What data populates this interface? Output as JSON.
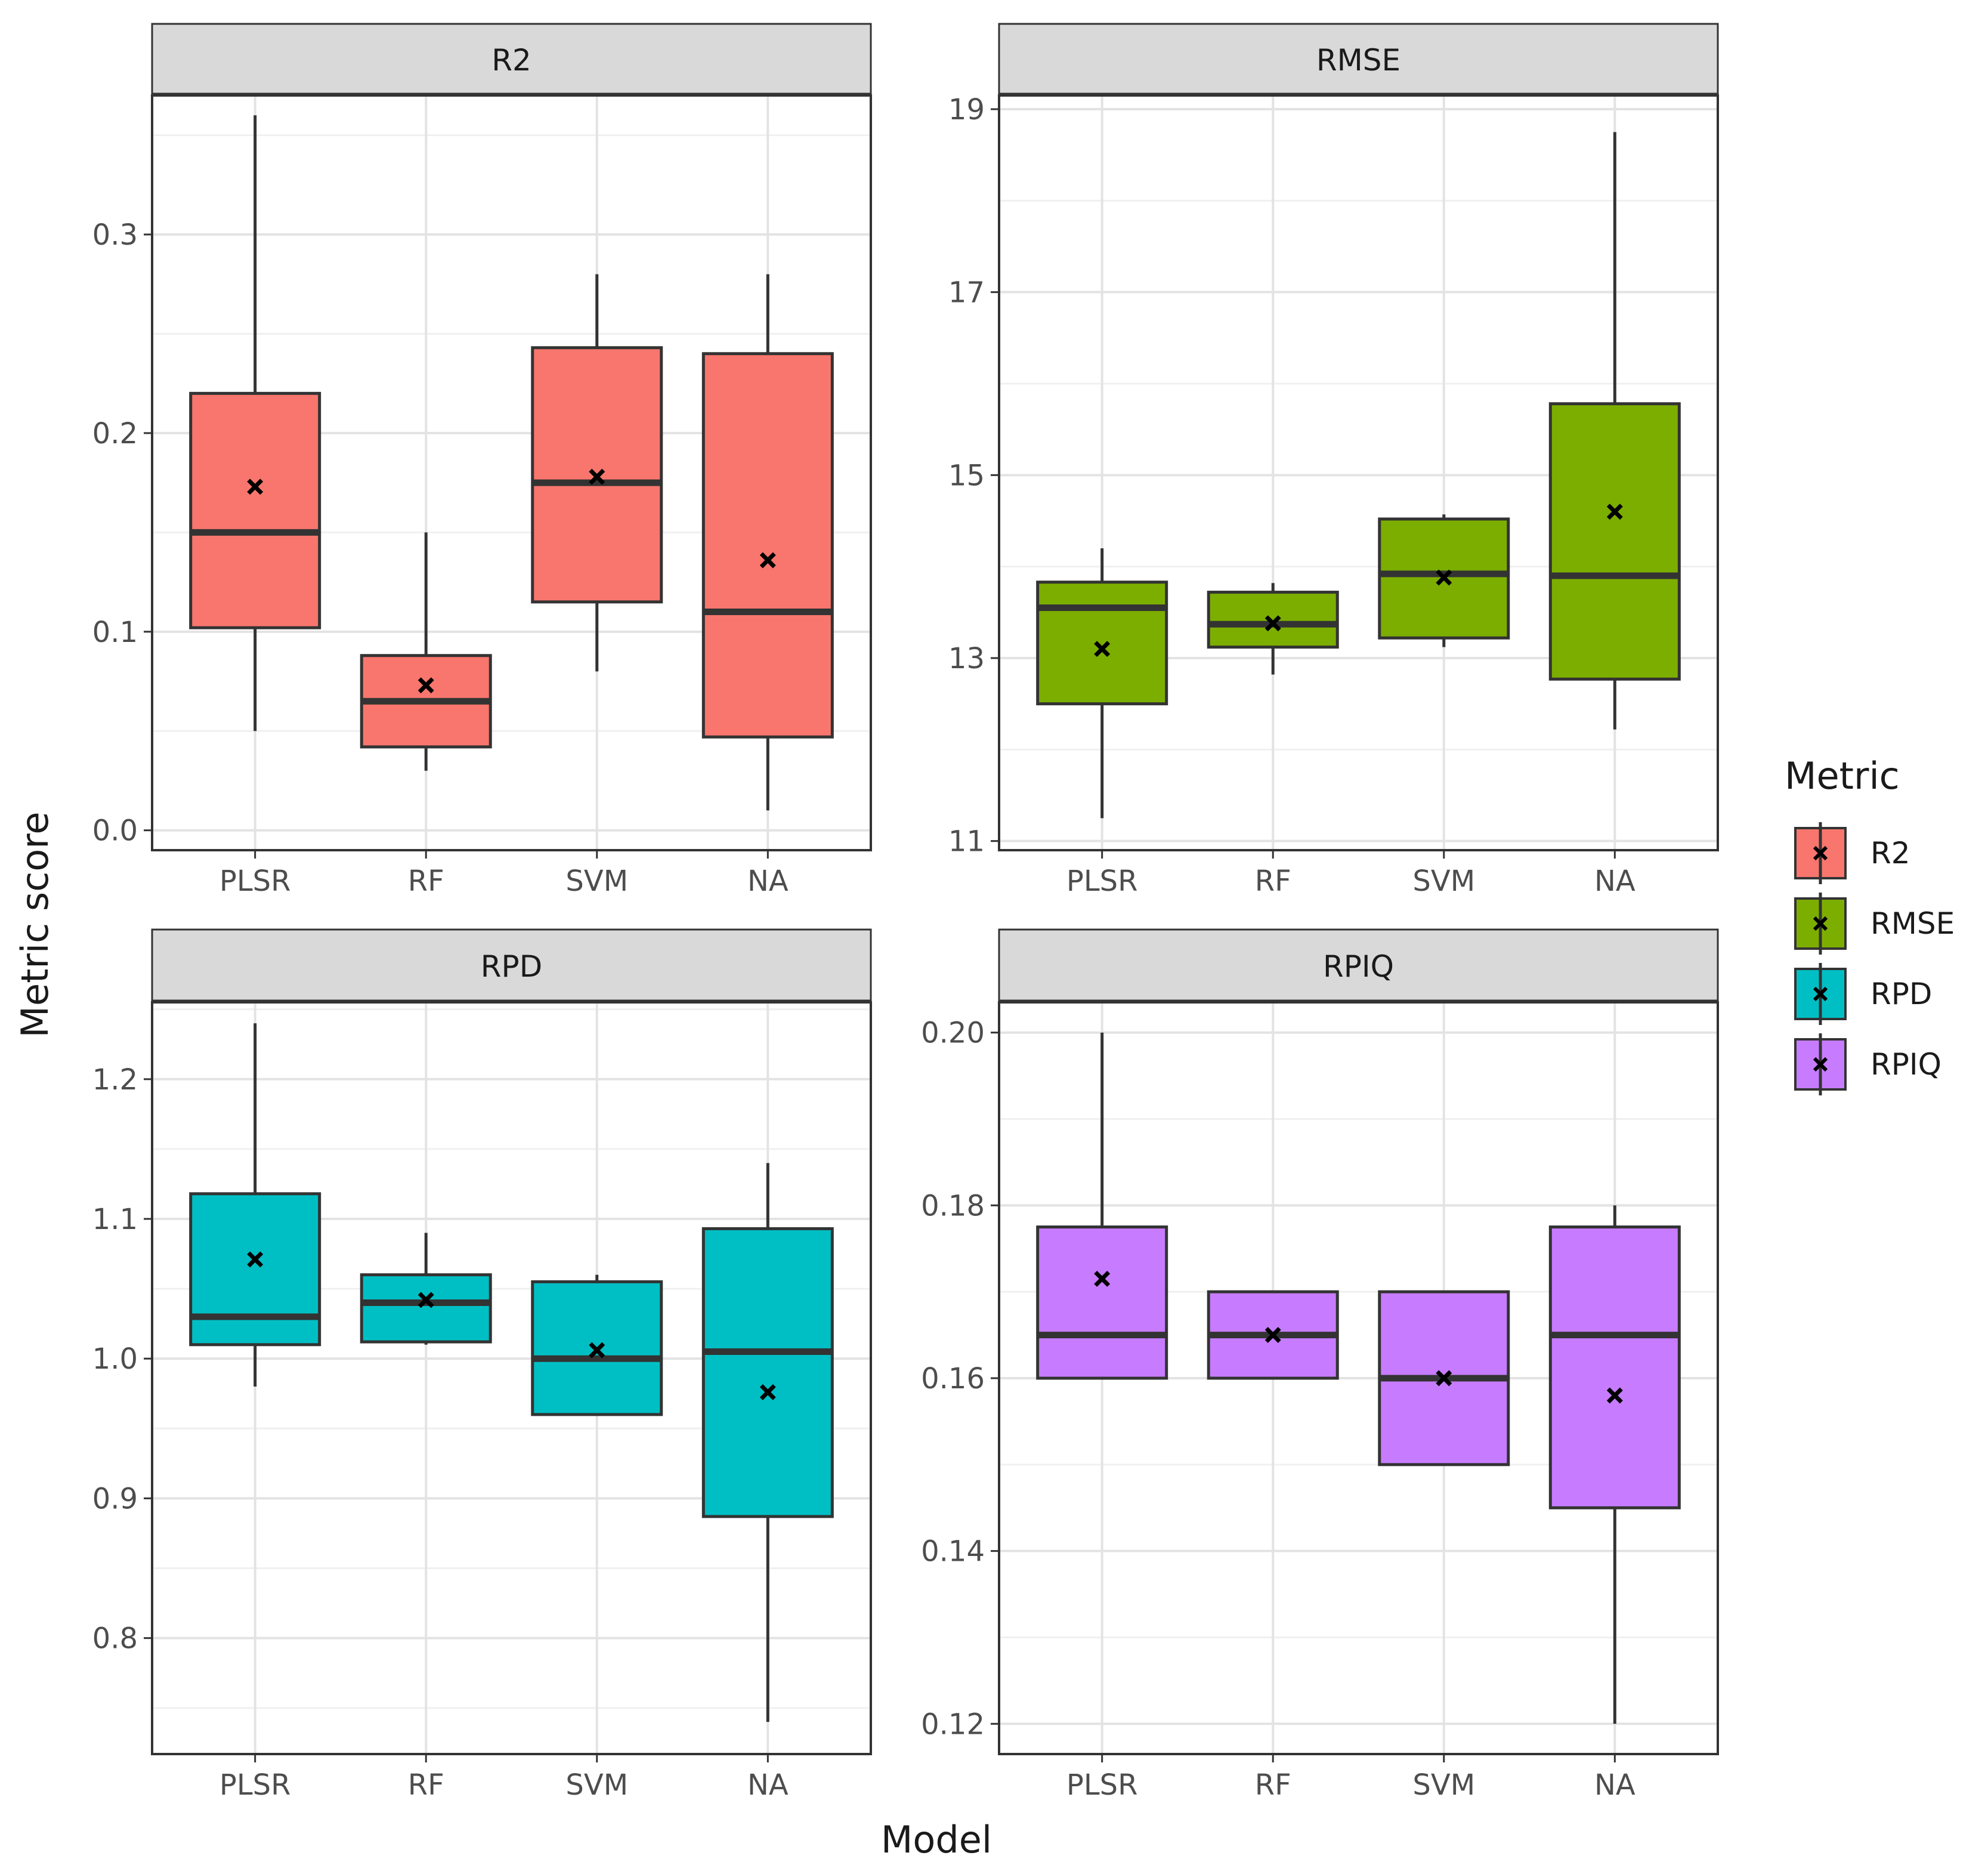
{
  "figure": {
    "xlabel": "Model",
    "ylabel": "Metric score"
  },
  "legend": {
    "title": "Metric",
    "placement": "right",
    "items": [
      {
        "label": "R2",
        "color": "#F8766D"
      },
      {
        "label": "RMSE",
        "color": "#7CAE00"
      },
      {
        "label": "RPD",
        "color": "#00BFC4"
      },
      {
        "label": "RPIQ",
        "color": "#C77CFF"
      }
    ]
  },
  "chart_data": [
    {
      "type": "boxplot",
      "title": "R2",
      "color": "#F8766D",
      "categories": [
        "PLSR",
        "RF",
        "SVM",
        "NA"
      ],
      "ylim": [
        -0.01,
        0.37
      ],
      "yticks": [
        0.0,
        0.1,
        0.2,
        0.3
      ],
      "ytick_labels": [
        "0.0",
        "0.1",
        "0.2",
        "0.3"
      ],
      "boxes": [
        {
          "whisker_low": 0.05,
          "q1": 0.102,
          "median": 0.15,
          "q3": 0.22,
          "whisker_high": 0.36,
          "mean": 0.173
        },
        {
          "whisker_low": 0.03,
          "q1": 0.042,
          "median": 0.065,
          "q3": 0.088,
          "whisker_high": 0.15,
          "mean": 0.073
        },
        {
          "whisker_low": 0.08,
          "q1": 0.115,
          "median": 0.175,
          "q3": 0.243,
          "whisker_high": 0.28,
          "mean": 0.178
        },
        {
          "whisker_low": 0.01,
          "q1": 0.047,
          "median": 0.11,
          "q3": 0.24,
          "whisker_high": 0.28,
          "mean": 0.136
        }
      ]
    },
    {
      "type": "boxplot",
      "title": "RMSE",
      "color": "#7CAE00",
      "categories": [
        "PLSR",
        "RF",
        "SVM",
        "NA"
      ],
      "ylim": [
        10.9,
        19.15
      ],
      "yticks": [
        11,
        13,
        15,
        17,
        19
      ],
      "ytick_labels": [
        "11",
        "13",
        "15",
        "17",
        "19"
      ],
      "boxes": [
        {
          "whisker_low": 11.25,
          "q1": 12.5,
          "median": 13.55,
          "q3": 13.83,
          "whisker_high": 14.2,
          "mean": 13.1
        },
        {
          "whisker_low": 12.82,
          "q1": 13.12,
          "median": 13.37,
          "q3": 13.72,
          "whisker_high": 13.82,
          "mean": 13.38
        },
        {
          "whisker_low": 13.12,
          "q1": 13.22,
          "median": 13.92,
          "q3": 14.52,
          "whisker_high": 14.57,
          "mean": 13.88
        },
        {
          "whisker_low": 12.22,
          "q1": 12.77,
          "median": 13.9,
          "q3": 15.78,
          "whisker_high": 18.75,
          "mean": 14.6
        }
      ]
    },
    {
      "type": "boxplot",
      "title": "RPD",
      "color": "#00BFC4",
      "categories": [
        "PLSR",
        "RF",
        "SVM",
        "NA"
      ],
      "ylim": [
        0.717,
        1.255
      ],
      "yticks": [
        0.8,
        0.9,
        1.0,
        1.1,
        1.2
      ],
      "ytick_labels": [
        "0.8",
        "0.9",
        "1.0",
        "1.1",
        "1.2"
      ],
      "boxes": [
        {
          "whisker_low": 0.98,
          "q1": 1.01,
          "median": 1.03,
          "q3": 1.118,
          "whisker_high": 1.24,
          "mean": 1.071
        },
        {
          "whisker_low": 1.01,
          "q1": 1.012,
          "median": 1.04,
          "q3": 1.06,
          "whisker_high": 1.09,
          "mean": 1.042
        },
        {
          "whisker_low": 0.96,
          "q1": 0.96,
          "median": 1.0,
          "q3": 1.055,
          "whisker_high": 1.06,
          "mean": 1.006
        },
        {
          "whisker_low": 0.74,
          "q1": 0.887,
          "median": 1.005,
          "q3": 1.093,
          "whisker_high": 1.14,
          "mean": 0.976
        }
      ]
    },
    {
      "type": "boxplot",
      "title": "RPIQ",
      "color": "#C77CFF",
      "categories": [
        "PLSR",
        "RF",
        "SVM",
        "NA"
      ],
      "ylim": [
        0.1165,
        0.2035
      ],
      "yticks": [
        0.12,
        0.14,
        0.16,
        0.18,
        0.2
      ],
      "ytick_labels": [
        "0.12",
        "0.14",
        "0.16",
        "0.18",
        "0.20"
      ],
      "boxes": [
        {
          "whisker_low": 0.16,
          "q1": 0.16,
          "median": 0.165,
          "q3": 0.1775,
          "whisker_high": 0.2,
          "mean": 0.1715
        },
        {
          "whisker_low": 0.16,
          "q1": 0.16,
          "median": 0.165,
          "q3": 0.17,
          "whisker_high": 0.17,
          "mean": 0.165
        },
        {
          "whisker_low": 0.15,
          "q1": 0.15,
          "median": 0.16,
          "q3": 0.17,
          "whisker_high": 0.17,
          "mean": 0.16
        },
        {
          "whisker_low": 0.12,
          "q1": 0.145,
          "median": 0.165,
          "q3": 0.1775,
          "whisker_high": 0.18,
          "mean": 0.158
        }
      ]
    }
  ]
}
